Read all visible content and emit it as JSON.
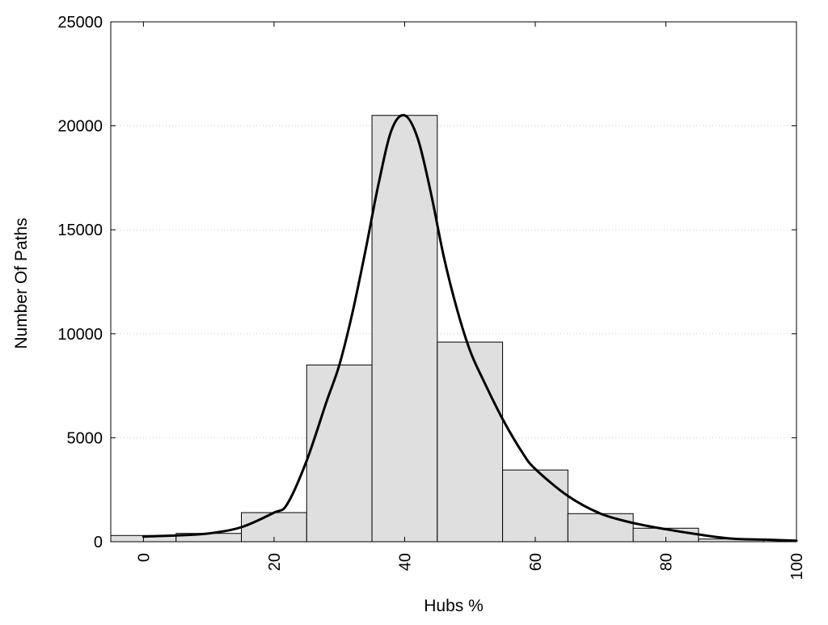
{
  "chart_data": {
    "type": "bar",
    "title": "",
    "xlabel": "Hubs %",
    "ylabel": "Number Of Paths",
    "xlim": [
      -5,
      100
    ],
    "ylim": [
      0,
      25000
    ],
    "x_ticks": [
      0,
      20,
      40,
      60,
      80,
      100
    ],
    "y_ticks": [
      0,
      5000,
      10000,
      15000,
      20000,
      25000
    ],
    "grid": {
      "y": true,
      "x": false,
      "style": "dotted"
    },
    "legend": "none",
    "bar_width": 10,
    "bars": [
      {
        "x": 0,
        "value": 300
      },
      {
        "x": 10,
        "value": 400
      },
      {
        "x": 20,
        "value": 1400
      },
      {
        "x": 30,
        "value": 8500
      },
      {
        "x": 40,
        "value": 20500
      },
      {
        "x": 50,
        "value": 9600
      },
      {
        "x": 60,
        "value": 3450
      },
      {
        "x": 70,
        "value": 1350
      },
      {
        "x": 80,
        "value": 650
      },
      {
        "x": 90,
        "value": 130
      }
    ],
    "curve": {
      "x": [
        0,
        5,
        10,
        15,
        20,
        22,
        25,
        28,
        30,
        32,
        34,
        36,
        38,
        40,
        42,
        44,
        46,
        48,
        50,
        52,
        55,
        58,
        60,
        65,
        70,
        75,
        80,
        85,
        90,
        95,
        100
      ],
      "y": [
        250,
        300,
        400,
        700,
        1400,
        1800,
        3900,
        6700,
        8500,
        11000,
        14000,
        17200,
        19800,
        20500,
        19400,
        16800,
        13700,
        11200,
        9200,
        7800,
        5900,
        4300,
        3500,
        2200,
        1350,
        900,
        600,
        350,
        150,
        100,
        50
      ]
    },
    "colors": {
      "bar_fill": "#dfdfdf",
      "bar_stroke": "#000000",
      "curve": "#000000",
      "grid": "#c8c8c8"
    }
  }
}
